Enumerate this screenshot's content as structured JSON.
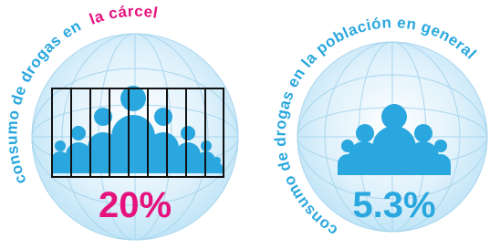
{
  "panels": [
    {
      "caption_parts": [
        "consumo de drogas en",
        "la cárcel"
      ],
      "value": "20%"
    },
    {
      "caption": "consumo de drogas en la población en general",
      "value": "5.3%"
    }
  ]
}
